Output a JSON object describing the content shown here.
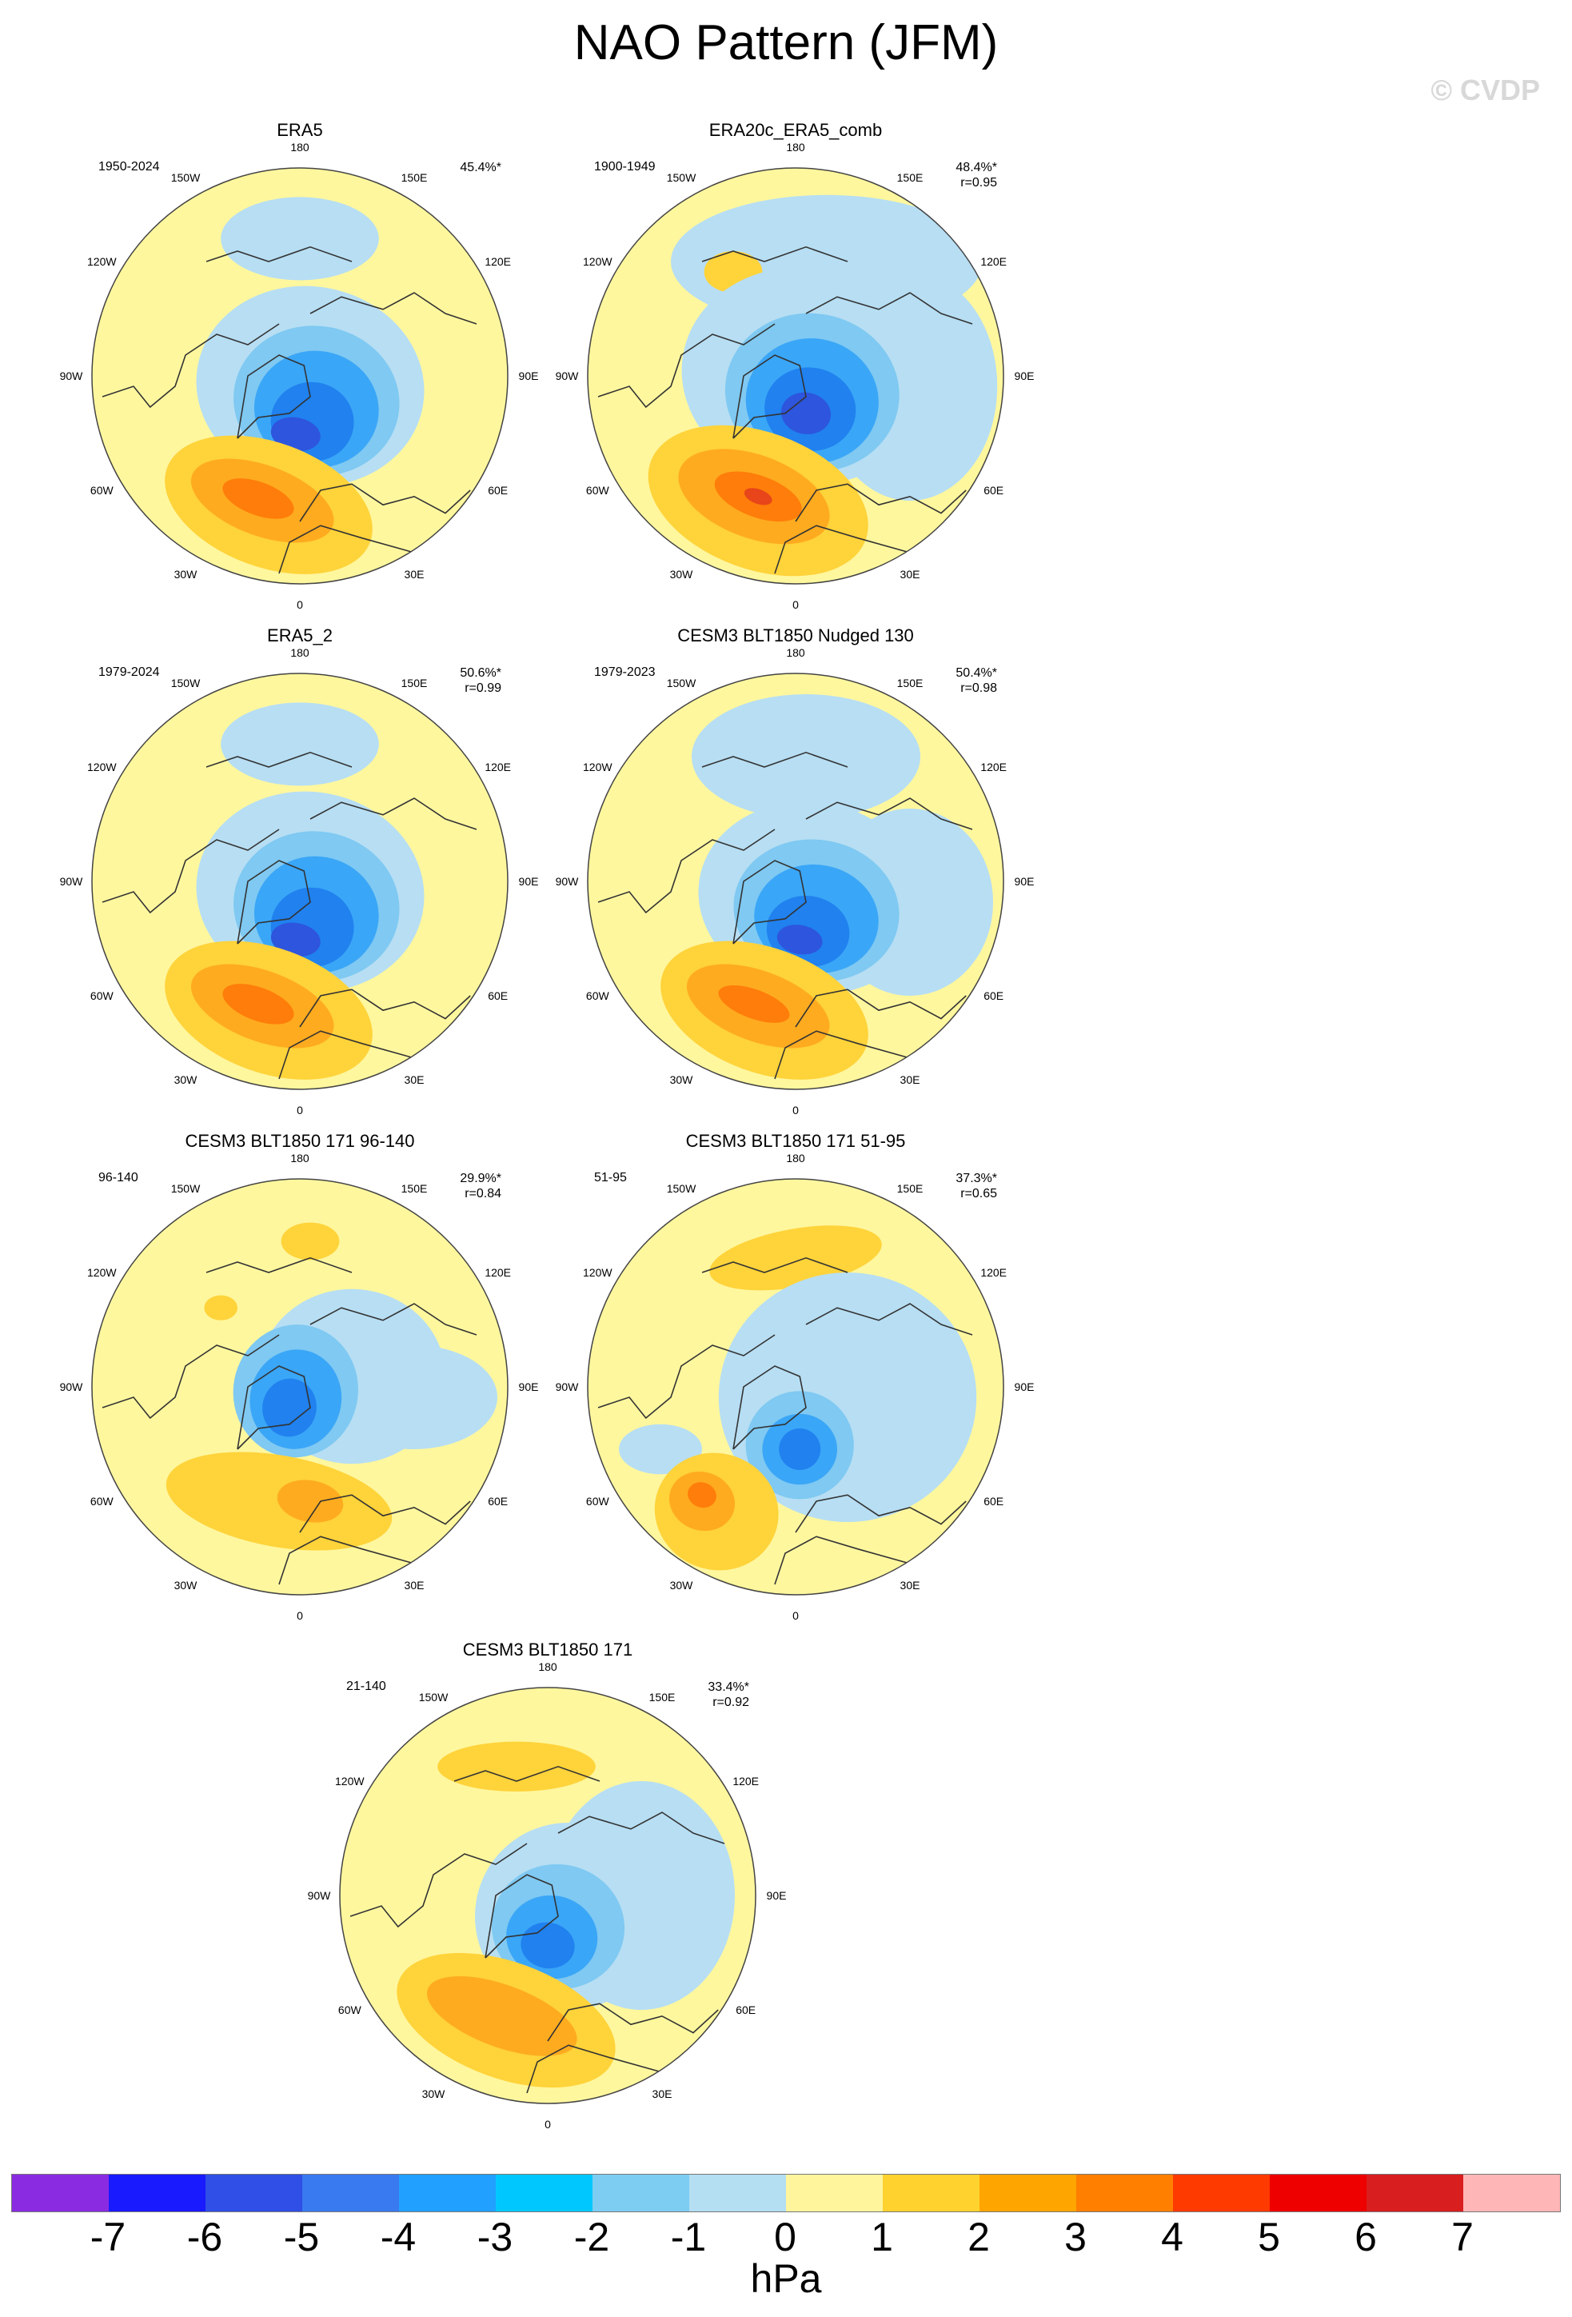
{
  "title": "NAO Pattern (JFM)",
  "watermark": "© CVDP",
  "longitude_labels": [
    "180",
    "150E",
    "120E",
    "90E",
    "60E",
    "30E",
    "0",
    "30W",
    "60W",
    "90W",
    "120W",
    "150W"
  ],
  "panels": [
    {
      "title": "ERA5",
      "years": "1950-2024",
      "pct": "45.4%*",
      "r": "",
      "pattern": "A"
    },
    {
      "title": "ERA20c_ERA5_comb",
      "years": "1900-1949",
      "pct": "48.4%*",
      "r": "r=0.95",
      "pattern": "B"
    },
    {
      "title": "ERA5_2",
      "years": "1979-2024",
      "pct": "50.6%*",
      "r": "r=0.99",
      "pattern": "A"
    },
    {
      "title": "CESM3 BLT1850 Nudged 130",
      "years": "1979-2023",
      "pct": "50.4%*",
      "r": "r=0.98",
      "pattern": "A2"
    },
    {
      "title": "CESM3 BLT1850 171 96-140",
      "years": "96-140",
      "pct": "29.9%*",
      "r": "r=0.84",
      "pattern": "C"
    },
    {
      "title": "CESM3 BLT1850 171 51-95",
      "years": "51-95",
      "pct": "37.3%*",
      "r": "r=0.65",
      "pattern": "D"
    },
    {
      "title": "CESM3 BLT1850 171",
      "years": "21-140",
      "pct": "33.4%*",
      "r": "r=0.92",
      "pattern": "E"
    }
  ],
  "colorbar": {
    "unit": "hPa",
    "ticks": [
      "-7",
      "-6",
      "-5",
      "-4",
      "-3",
      "-2",
      "-1",
      "0",
      "1",
      "2",
      "3",
      "4",
      "5",
      "6",
      "7"
    ],
    "colors": [
      "#8a2be2",
      "#1a1aff",
      "#2f4fe6",
      "#3a7af0",
      "#22a0ff",
      "#00c8ff",
      "#7dcdf2",
      "#b4def2",
      "#fff59d",
      "#ffd22e",
      "#ffa500",
      "#ff7f00",
      "#ff3a00",
      "#ee0000",
      "#d81e1e",
      "#ffb6b6"
    ]
  }
}
